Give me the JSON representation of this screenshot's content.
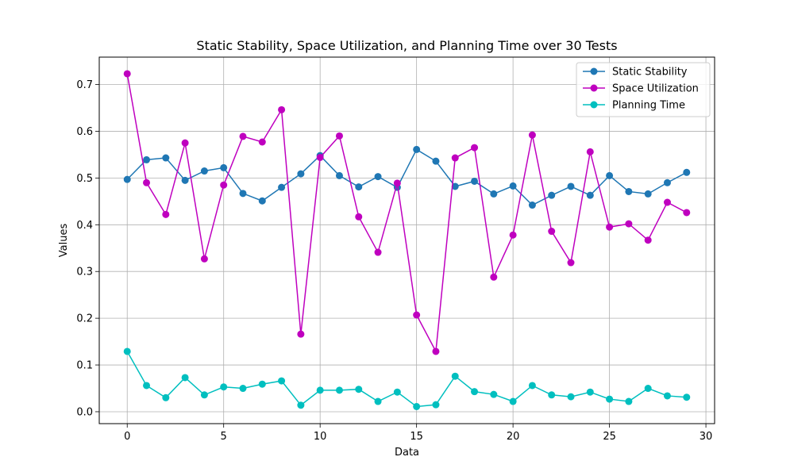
{
  "chart_data": {
    "type": "line",
    "title": "Static Stability, Space Utilization, and Planning Time over 30 Tests",
    "xlabel": "Data",
    "ylabel": "Values",
    "xlim": [
      -1.45,
      30.45
    ],
    "ylim": [
      -0.0255,
      0.7586
    ],
    "xticks": [
      0,
      5,
      10,
      15,
      20,
      25,
      30
    ],
    "yticks": [
      0.0,
      0.1,
      0.2,
      0.3,
      0.4,
      0.5,
      0.6,
      0.7
    ],
    "xtick_labels": [
      "0",
      "5",
      "10",
      "15",
      "20",
      "25",
      "30"
    ],
    "ytick_labels": [
      "0.0",
      "0.1",
      "0.2",
      "0.3",
      "0.4",
      "0.5",
      "0.6",
      "0.7"
    ],
    "grid": true,
    "legend_position": "top-right",
    "x": [
      0,
      1,
      2,
      3,
      4,
      5,
      6,
      7,
      8,
      9,
      10,
      11,
      12,
      13,
      14,
      15,
      16,
      17,
      18,
      19,
      20,
      21,
      22,
      23,
      24,
      25,
      26,
      27,
      28,
      29
    ],
    "series": [
      {
        "name": "Static Stability",
        "color": "#1f77b4",
        "values": [
          0.497,
          0.539,
          0.543,
          0.495,
          0.515,
          0.522,
          0.467,
          0.451,
          0.48,
          0.509,
          0.548,
          0.505,
          0.481,
          0.503,
          0.48,
          0.561,
          0.536,
          0.482,
          0.493,
          0.466,
          0.483,
          0.442,
          0.463,
          0.482,
          0.463,
          0.505,
          0.471,
          0.466,
          0.49,
          0.512
        ]
      },
      {
        "name": "Space Utilization",
        "color": "#bf00bf",
        "values": [
          0.723,
          0.49,
          0.422,
          0.575,
          0.327,
          0.485,
          0.589,
          0.577,
          0.646,
          0.166,
          0.544,
          0.59,
          0.417,
          0.341,
          0.489,
          0.207,
          0.129,
          0.543,
          0.565,
          0.288,
          0.378,
          0.592,
          0.386,
          0.319,
          0.556,
          0.395,
          0.402,
          0.367,
          0.448,
          0.426
        ]
      },
      {
        "name": "Planning Time",
        "color": "#00bfbf",
        "values": [
          0.129,
          0.056,
          0.03,
          0.073,
          0.036,
          0.053,
          0.05,
          0.059,
          0.066,
          0.014,
          0.046,
          0.046,
          0.048,
          0.022,
          0.042,
          0.011,
          0.015,
          0.076,
          0.043,
          0.037,
          0.022,
          0.056,
          0.036,
          0.032,
          0.042,
          0.027,
          0.022,
          0.05,
          0.034,
          0.031
        ]
      }
    ]
  }
}
